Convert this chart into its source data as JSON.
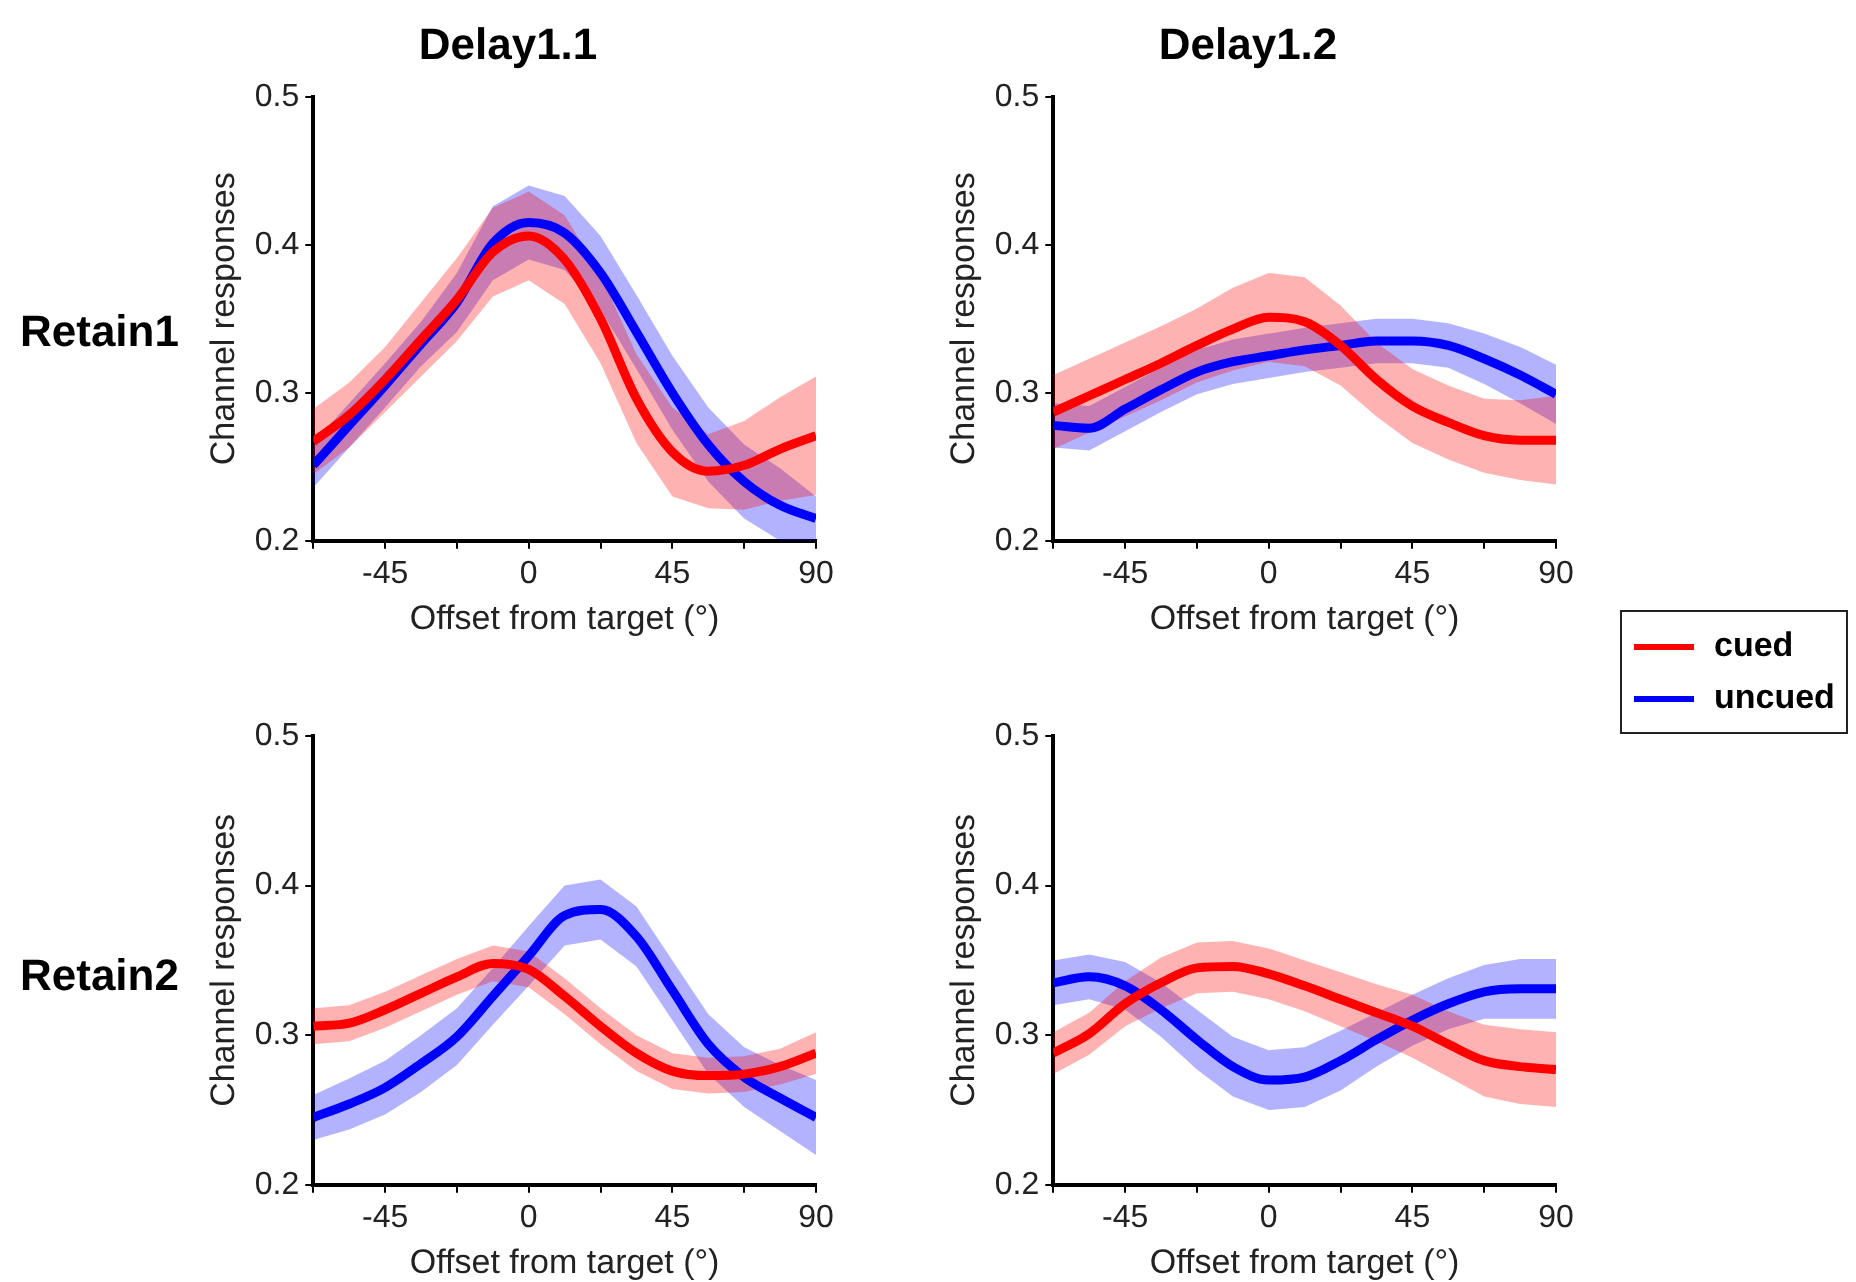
{
  "chart_data": [
    {
      "type": "line",
      "title": "Delay1.1",
      "annotations": [
        "Retain1"
      ],
      "xlabel": "Offset from target (°)",
      "ylabel": "Channel responses",
      "xlim": [
        -67.5,
        90
      ],
      "ylim": [
        0.2,
        0.5
      ],
      "xticks": [
        {
          "value": -67.5,
          "label": null
        },
        -45,
        {
          "value": -22.5,
          "label": null
        },
        0,
        {
          "value": 22.5,
          "label": null
        },
        45,
        {
          "value": 67.5,
          "label": null
        },
        90
      ],
      "yticks": [
        0.2,
        0.3,
        0.4,
        0.5
      ],
      "grid": false,
      "x": [
        -67.5,
        -56.25,
        -45,
        -33.75,
        -22.5,
        -11.25,
        0,
        11.25,
        22.5,
        33.75,
        45,
        56.25,
        67.5,
        78.75,
        90
      ],
      "series": [
        {
          "color": "#ff0000",
          "values": [
            0.267,
            0.285,
            0.309,
            0.336,
            0.363,
            0.395,
            0.406,
            0.39,
            0.35,
            0.296,
            0.26,
            0.247,
            0.251,
            0.262,
            0.271
          ],
          "lower": [
            0.245,
            0.263,
            0.287,
            0.311,
            0.335,
            0.365,
            0.376,
            0.36,
            0.32,
            0.266,
            0.23,
            0.222,
            0.221,
            0.227,
            0.231
          ],
          "upper": [
            0.289,
            0.307,
            0.331,
            0.361,
            0.391,
            0.425,
            0.436,
            0.42,
            0.38,
            0.326,
            0.29,
            0.272,
            0.281,
            0.297,
            0.311
          ]
        },
        {
          "color": "#0000ff",
          "values": [
            0.251,
            0.278,
            0.305,
            0.333,
            0.361,
            0.401,
            0.415,
            0.408,
            0.381,
            0.341,
            0.3,
            0.265,
            0.24,
            0.224,
            0.215
          ],
          "lower": [
            0.236,
            0.263,
            0.29,
            0.318,
            0.341,
            0.376,
            0.39,
            0.383,
            0.356,
            0.316,
            0.275,
            0.24,
            0.215,
            0.2,
            0.2
          ],
          "upper": [
            0.266,
            0.293,
            0.32,
            0.348,
            0.381,
            0.426,
            0.44,
            0.433,
            0.406,
            0.366,
            0.325,
            0.29,
            0.265,
            0.249,
            0.23
          ]
        }
      ]
    },
    {
      "type": "line",
      "title": "Delay1.2",
      "legend": "bottom right",
      "xlabel": "Offset from target (°)",
      "ylabel": "Channel responses",
      "xlim": [
        -67.5,
        90
      ],
      "ylim": [
        0.2,
        0.5
      ],
      "xticks": [
        {
          "value": -67.5,
          "label": null
        },
        -45,
        {
          "value": -22.5,
          "label": null
        },
        0,
        {
          "value": 22.5,
          "label": null
        },
        45,
        {
          "value": 67.5,
          "label": null
        },
        90
      ],
      "yticks": [
        0.2,
        0.3,
        0.4,
        0.5
      ],
      "grid": false,
      "x": [
        -67.5,
        -56.25,
        -45,
        -33.75,
        -22.5,
        -11.25,
        0,
        11.25,
        22.5,
        33.75,
        45,
        56.25,
        67.5,
        78.75,
        90
      ],
      "series": [
        {
          "name": "cued",
          "color": "#ff0000",
          "values": [
            0.287,
            0.298,
            0.309,
            0.32,
            0.332,
            0.343,
            0.351,
            0.348,
            0.332,
            0.309,
            0.291,
            0.28,
            0.271,
            0.268,
            0.268
          ],
          "lower": [
            0.262,
            0.273,
            0.284,
            0.295,
            0.307,
            0.315,
            0.321,
            0.318,
            0.305,
            0.284,
            0.266,
            0.255,
            0.246,
            0.241,
            0.238
          ],
          "upper": [
            0.312,
            0.323,
            0.334,
            0.345,
            0.357,
            0.371,
            0.381,
            0.378,
            0.359,
            0.334,
            0.316,
            0.305,
            0.296,
            0.295,
            0.298
          ]
        },
        {
          "name": "uncued",
          "color": "#0000ff",
          "values": [
            0.278,
            0.276,
            0.289,
            0.302,
            0.314,
            0.321,
            0.325,
            0.329,
            0.332,
            0.335,
            0.335,
            0.332,
            0.323,
            0.312,
            0.299
          ],
          "lower": [
            0.263,
            0.261,
            0.274,
            0.287,
            0.299,
            0.306,
            0.31,
            0.314,
            0.317,
            0.32,
            0.32,
            0.317,
            0.306,
            0.293,
            0.279
          ],
          "upper": [
            0.293,
            0.291,
            0.304,
            0.317,
            0.329,
            0.336,
            0.34,
            0.344,
            0.347,
            0.35,
            0.35,
            0.347,
            0.34,
            0.331,
            0.319
          ]
        }
      ]
    },
    {
      "type": "line",
      "annotations": [
        "Retain2"
      ],
      "xlabel": "Offset from target (°)",
      "ylabel": "Channel responses",
      "xlim": [
        -67.5,
        90
      ],
      "ylim": [
        0.2,
        0.5
      ],
      "xticks": [
        {
          "value": -67.5,
          "label": null
        },
        -45,
        {
          "value": -22.5,
          "label": null
        },
        0,
        {
          "value": 22.5,
          "label": null
        },
        45,
        {
          "value": 67.5,
          "label": null
        },
        90
      ],
      "yticks": [
        0.2,
        0.3,
        0.4,
        0.5
      ],
      "grid": false,
      "x": [
        -67.5,
        -56.25,
        -45,
        -33.75,
        -22.5,
        -11.25,
        0,
        11.25,
        22.5,
        33.75,
        45,
        56.25,
        67.5,
        78.75,
        90
      ],
      "series": [
        {
          "color": "#ff0000",
          "values": [
            0.306,
            0.308,
            0.317,
            0.328,
            0.339,
            0.348,
            0.344,
            0.326,
            0.306,
            0.288,
            0.276,
            0.273,
            0.274,
            0.279,
            0.288
          ],
          "lower": [
            0.294,
            0.296,
            0.305,
            0.316,
            0.327,
            0.336,
            0.332,
            0.314,
            0.294,
            0.276,
            0.264,
            0.261,
            0.262,
            0.267,
            0.274
          ],
          "upper": [
            0.318,
            0.32,
            0.329,
            0.34,
            0.351,
            0.36,
            0.356,
            0.338,
            0.318,
            0.3,
            0.288,
            0.285,
            0.286,
            0.291,
            0.302
          ]
        },
        {
          "color": "#0000ff",
          "values": [
            0.245,
            0.254,
            0.265,
            0.281,
            0.299,
            0.326,
            0.353,
            0.38,
            0.384,
            0.366,
            0.33,
            0.294,
            0.272,
            0.258,
            0.245
          ],
          "lower": [
            0.23,
            0.237,
            0.247,
            0.262,
            0.28,
            0.307,
            0.333,
            0.36,
            0.364,
            0.346,
            0.31,
            0.274,
            0.252,
            0.236,
            0.22
          ],
          "upper": [
            0.26,
            0.271,
            0.283,
            0.3,
            0.318,
            0.345,
            0.373,
            0.4,
            0.404,
            0.386,
            0.35,
            0.314,
            0.292,
            0.28,
            0.27
          ]
        }
      ]
    },
    {
      "type": "line",
      "xlabel": "Offset from target (°)",
      "ylabel": "Channel responses",
      "xlim": [
        -67.5,
        90
      ],
      "ylim": [
        0.2,
        0.5
      ],
      "xticks": [
        {
          "value": -67.5,
          "label": null
        },
        -45,
        {
          "value": -22.5,
          "label": null
        },
        0,
        {
          "value": 22.5,
          "label": null
        },
        45,
        {
          "value": 67.5,
          "label": null
        },
        90
      ],
      "yticks": [
        0.2,
        0.3,
        0.4,
        0.5
      ],
      "grid": false,
      "x": [
        -67.5,
        -56.25,
        -45,
        -33.75,
        -22.5,
        -11.25,
        0,
        11.25,
        22.5,
        33.75,
        45,
        56.25,
        67.5,
        78.75,
        90
      ],
      "series": [
        {
          "color": "#ff0000",
          "values": [
            0.288,
            0.301,
            0.321,
            0.335,
            0.345,
            0.346,
            0.341,
            0.333,
            0.324,
            0.315,
            0.306,
            0.294,
            0.283,
            0.279,
            0.277
          ],
          "lower": [
            0.274,
            0.287,
            0.306,
            0.318,
            0.328,
            0.329,
            0.324,
            0.316,
            0.306,
            0.296,
            0.285,
            0.272,
            0.259,
            0.254,
            0.252
          ],
          "upper": [
            0.302,
            0.315,
            0.336,
            0.352,
            0.362,
            0.363,
            0.358,
            0.35,
            0.342,
            0.334,
            0.327,
            0.316,
            0.307,
            0.304,
            0.302
          ]
        },
        {
          "color": "#0000ff",
          "values": [
            0.335,
            0.339,
            0.333,
            0.317,
            0.297,
            0.279,
            0.27,
            0.272,
            0.283,
            0.297,
            0.31,
            0.321,
            0.329,
            0.331,
            0.331
          ],
          "lower": [
            0.32,
            0.324,
            0.317,
            0.299,
            0.277,
            0.259,
            0.25,
            0.252,
            0.263,
            0.279,
            0.293,
            0.304,
            0.311,
            0.311,
            0.311
          ],
          "upper": [
            0.35,
            0.354,
            0.349,
            0.335,
            0.317,
            0.299,
            0.29,
            0.292,
            0.303,
            0.315,
            0.327,
            0.338,
            0.347,
            0.351,
            0.351
          ]
        }
      ]
    }
  ]
}
